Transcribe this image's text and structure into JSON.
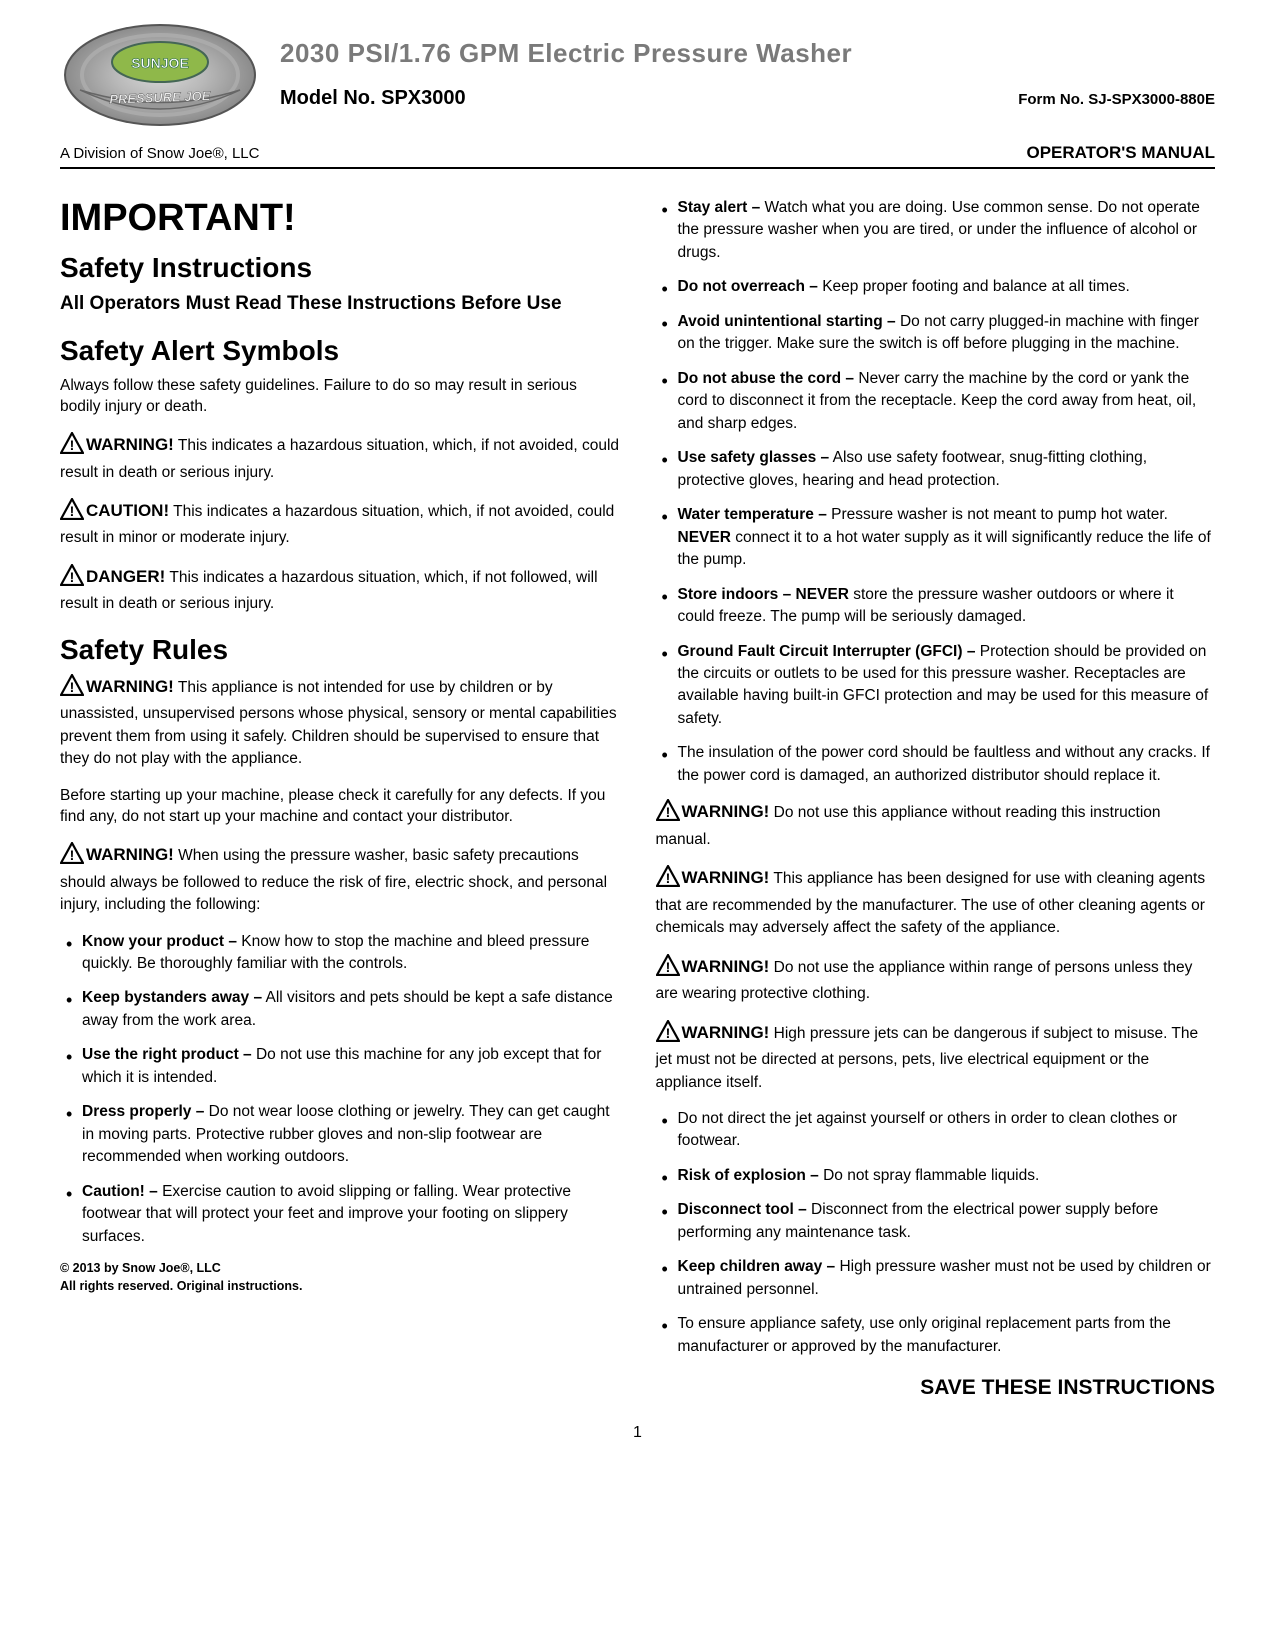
{
  "header": {
    "product_title": "2030 PSI/1.76 GPM Electric Pressure Washer",
    "model_label": "Model No. SPX3000",
    "form_label": "Form No. SJ-SPX3000-880E",
    "division": "A Division of Snow Joe®, LLC",
    "manual_label": "OPERATOR'S MANUAL"
  },
  "left": {
    "important": "IMPORTANT!",
    "safety_instructions_h": "Safety Instructions",
    "must_read": "All Operators Must Read These Instructions Before Use",
    "safety_alert_h": "Safety Alert Symbols",
    "alert_intro": "Always follow these safety guidelines. Failure to do so may result in serious bodily injury or death.",
    "warning_label": "WARNING!",
    "caution_label": "CAUTION!",
    "danger_label": "DANGER!",
    "warning_text": "This indicates a hazardous situation, which, if not avoided, could result in death or serious injury.",
    "caution_text": "This indicates a hazardous situation, which, if not avoided, could result in minor or moderate injury.",
    "danger_text": "This indicates a hazardous situation, which, if not followed, will result in death or serious injury.",
    "safety_rules_h": "Safety Rules",
    "rule_warning1": "This appliance is not intended for use by children or by unassisted, unsupervised persons whose physical, sensory or mental capabilities prevent them from using it safely. Children should be supervised to ensure that they do not play with the appliance.",
    "before_start": "Before starting up your machine, please check it carefully for any defects. If you find any, do not start up your machine and contact your distributor.",
    "rule_warning2": "When using the pressure washer, basic safety precautions should always be followed to reduce the risk of fire, electric shock, and personal injury, including the following:",
    "rules": [
      {
        "b": "Know your product –",
        "t": " Know how to stop the machine and bleed pressure quickly. Be thoroughly familiar with the controls."
      },
      {
        "b": "Keep bystanders away –",
        "t": " All visitors and pets should be kept a safe distance away from the work area."
      },
      {
        "b": "Use the right product –",
        "t": " Do not use this machine for any job except that for which it is intended."
      },
      {
        "b": "Dress properly –",
        "t": " Do not wear loose clothing or jewelry. They can get caught in moving parts. Protective rubber gloves and non-slip footwear are recommended when working outdoors."
      },
      {
        "b": "Caution! –",
        "t": " Exercise caution to avoid slipping or falling. Wear protective footwear that will protect your feet and improve your footing on slippery surfaces."
      }
    ],
    "copyright_line1": "© 2013 by Snow Joe®, LLC",
    "copyright_line2": "All rights reserved. Original instructions."
  },
  "right": {
    "rules_top": [
      {
        "b": "Stay alert –",
        "t": " Watch what you are doing. Use common sense. Do not operate the pressure washer when you are tired, or under the influence of alcohol or drugs."
      },
      {
        "b": "Do not overreach –",
        "t": " Keep proper footing and balance at all times."
      },
      {
        "b": "Avoid unintentional starting –",
        "t": " Do not carry plugged-in machine with finger on the trigger. Make sure the switch is off before plugging in the machine."
      },
      {
        "b": "Do not abuse the cord –",
        "t": " Never carry the machine by the cord or yank the cord to disconnect it from the receptacle. Keep the cord away from heat, oil, and sharp edges."
      },
      {
        "b": "Use safety glasses –",
        "t": " Also use safety footwear, snug-fitting clothing, protective gloves, hearing and head protection."
      }
    ],
    "water_temp_b": "Water temperature –",
    "water_temp_t1": " Pressure washer is not meant to pump hot water. ",
    "water_temp_never": "NEVER",
    "water_temp_t2": " connect it to a hot water supply as it will significantly reduce the life of the pump.",
    "store_b": "Store indoors –",
    "store_never": " NEVER",
    "store_t": " store the pressure washer outdoors or where it could freeze. The pump will be seriously damaged.",
    "gfci_b": "Ground Fault Circuit Interrupter (GFCI) –",
    "gfci_t": " Protection should be provided on the circuits or outlets to be used for this pressure washer. Receptacles are available having built-in GFCI protection and may be used for this measure of safety.",
    "insulation": "The insulation of the power cord should be faultless and without any cracks. If the power cord is damaged, an authorized distributor should replace it.",
    "warning_label": "WARNING!",
    "warn_read": "Do not use this appliance without reading this instruction manual.",
    "warn_clean": "This appliance has been designed for use with cleaning agents that are recommended by the manufacturer. The use of other cleaning agents or chemicals may adversely affect the safety of the appliance.",
    "warn_range": "Do not use the appliance within range of persons unless they are wearing protective clothing.",
    "warn_jets": "High pressure jets can be dangerous if subject to misuse. The jet must not be directed at persons, pets, live electrical equipment or the appliance itself.",
    "rules_bottom": [
      {
        "b": "",
        "t": "Do not direct the jet against yourself or others in order to clean clothes or footwear."
      },
      {
        "b": "Risk of explosion –",
        "t": " Do not spray flammable liquids."
      },
      {
        "b": "Disconnect tool –",
        "t": " Disconnect from the electrical power supply before performing any maintenance task."
      },
      {
        "b": "Keep children away –",
        "t": " High pressure washer must not be used by children or untrained personnel."
      },
      {
        "b": "",
        "t": "To ensure appliance safety, use only original replacement parts from the manufacturer or approved by the manufacturer."
      }
    ],
    "save": "SAVE THESE INSTRUCTIONS"
  },
  "page_number": "1"
}
